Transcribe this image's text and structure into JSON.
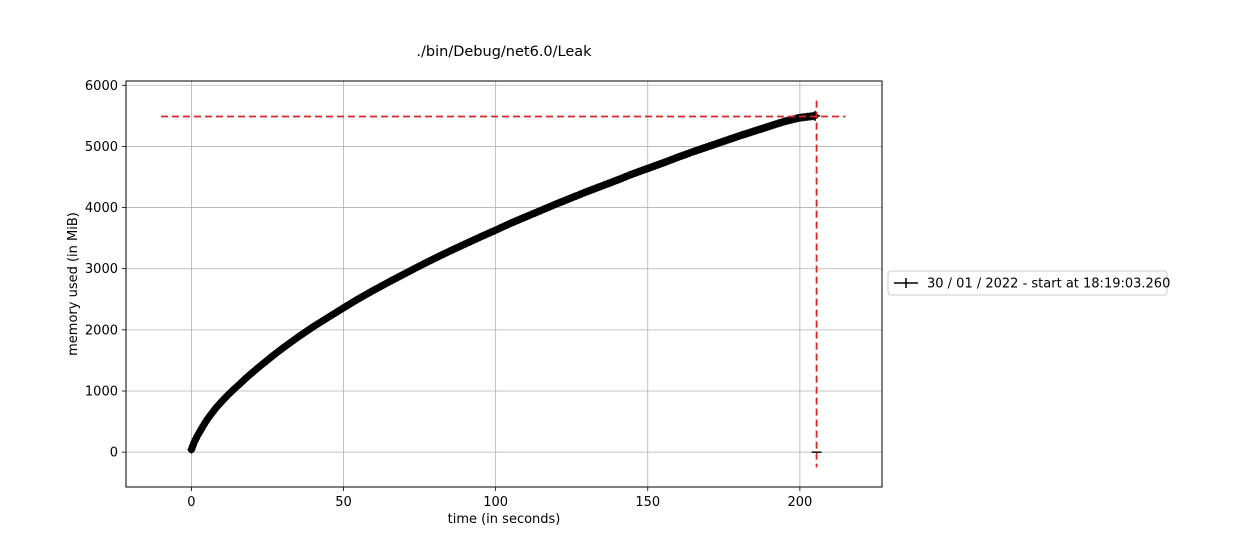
{
  "chart_data": {
    "type": "line",
    "title": "./bin/Debug/net6.0/Leak",
    "xlabel": "time (in seconds)",
    "ylabel": "memory used (in MiB)",
    "xlim": [
      -21.5,
      227
    ],
    "ylim": [
      -570,
      6070
    ],
    "xticks": [
      0,
      50,
      100,
      150,
      200
    ],
    "yticks": [
      0,
      1000,
      2000,
      3000,
      4000,
      5000,
      6000
    ],
    "grid": true,
    "legend_placement": "outside-right",
    "series": [
      {
        "name": "30 / 01 / 2022 - start at 18:19:03.260",
        "color": "#000000",
        "marker": "plus",
        "x": [
          0,
          0.5,
          1,
          1.5,
          2,
          3,
          4,
          5,
          6,
          7,
          8,
          9,
          10,
          12,
          14,
          16,
          18,
          20,
          22,
          25,
          28,
          30,
          35,
          40,
          45,
          50,
          55,
          60,
          65,
          70,
          75,
          80,
          85,
          90,
          95,
          100,
          105,
          110,
          115,
          120,
          125,
          130,
          135,
          140,
          145,
          150,
          155,
          160,
          165,
          170,
          175,
          180,
          185,
          190,
          195,
          200,
          205
        ],
        "y": [
          40,
          110,
          170,
          220,
          270,
          355,
          440,
          520,
          590,
          655,
          720,
          775,
          830,
          935,
          1030,
          1120,
          1215,
          1300,
          1385,
          1505,
          1625,
          1700,
          1880,
          2050,
          2205,
          2360,
          2510,
          2650,
          2785,
          2915,
          3045,
          3170,
          3290,
          3405,
          3520,
          3630,
          3745,
          3850,
          3955,
          4060,
          4160,
          4260,
          4355,
          4450,
          4550,
          4640,
          4730,
          4825,
          4915,
          5000,
          5085,
          5170,
          5250,
          5330,
          5410,
          5470,
          5500
        ]
      }
    ],
    "reference_lines": {
      "color": "#d62728",
      "style": "dashed",
      "horizontal": {
        "y": 5490,
        "x_from": -10,
        "x_to": 215
      },
      "vertical": {
        "x": 205.5,
        "y_from": -250,
        "y_to": 5750
      }
    }
  }
}
